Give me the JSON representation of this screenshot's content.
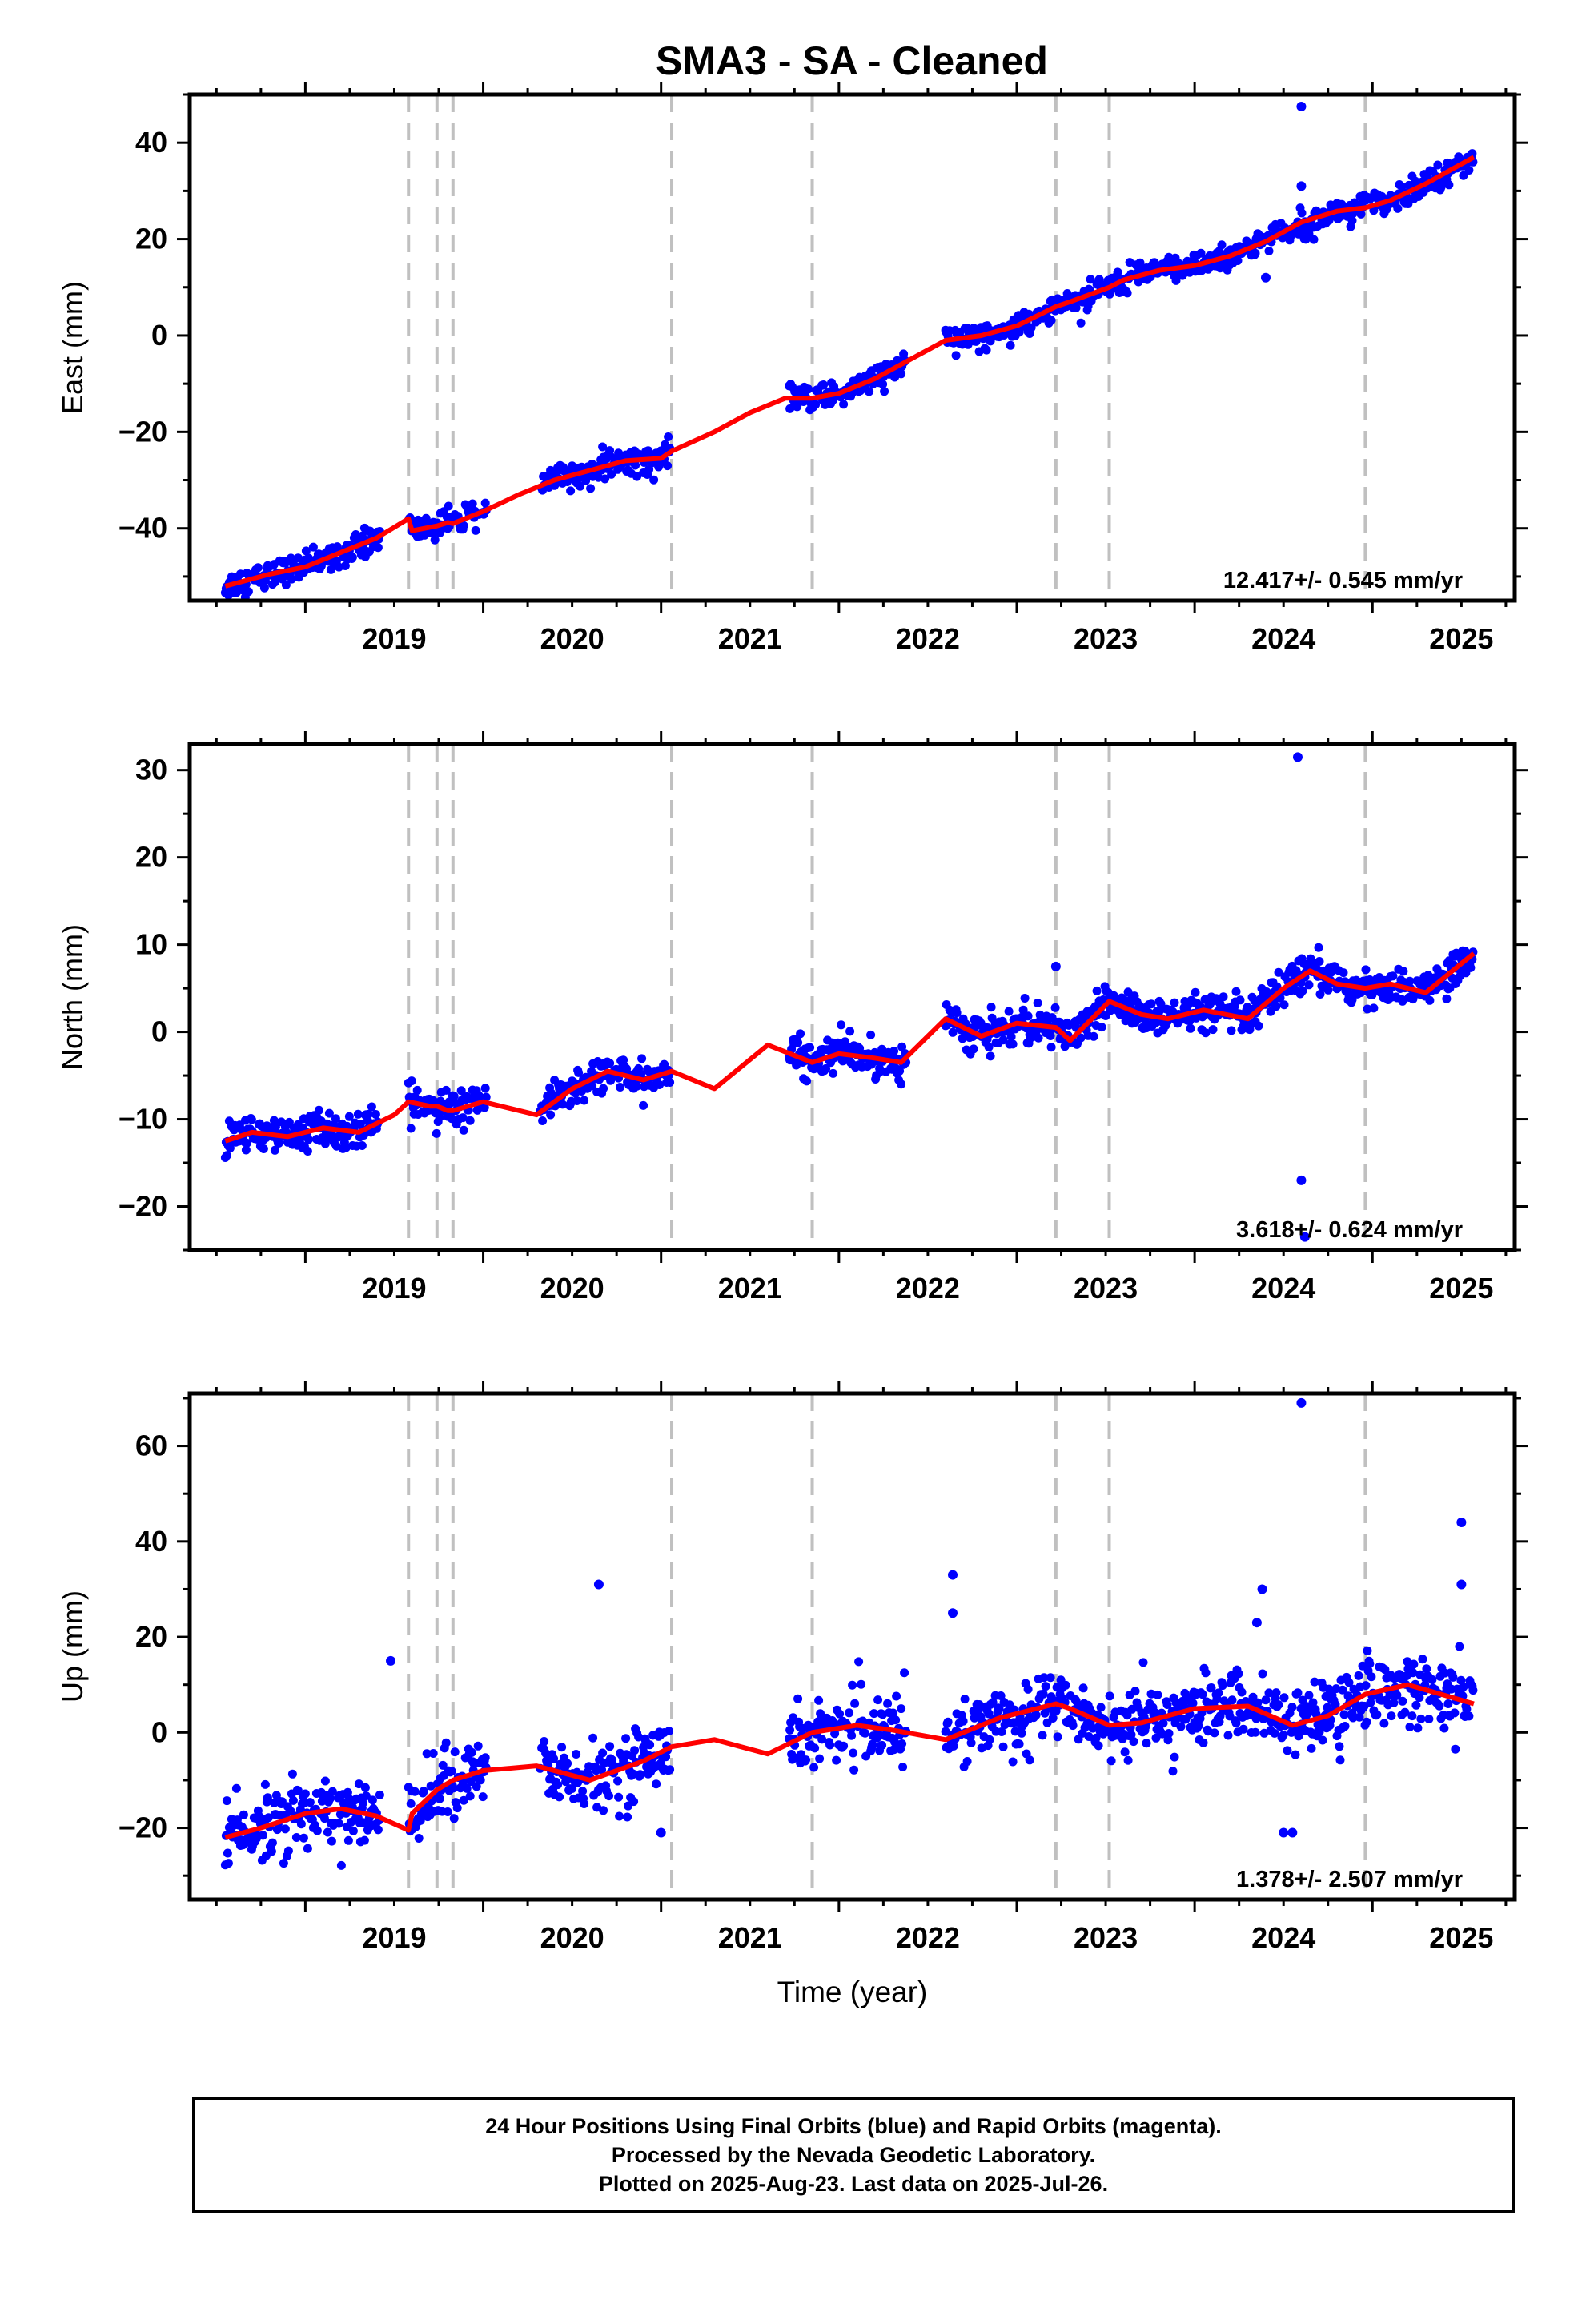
{
  "title": "SMA3  - SA - Cleaned",
  "footer": {
    "line1": "24 Hour Positions Using Final Orbits (blue) and Rapid Orbits (magenta).",
    "line2": "Processed by the Nevada Geodetic Laboratory.",
    "line3": "Plotted on 2025-Aug-23. Last data on 2025-Jul-26."
  },
  "colors": {
    "final_orbits": "#0000ff",
    "fit": "#ff0000",
    "event_lines": "#c0c0c0",
    "frame": "#000000"
  },
  "chart_data": [
    {
      "type": "scatter",
      "name": "east",
      "ylabel": "East (mm)",
      "xlabel": "",
      "xlim": [
        2018.35,
        2025.8
      ],
      "ylim": [
        -55,
        50
      ],
      "yticks": [
        -40,
        -20,
        0,
        20,
        40
      ],
      "xticks": [
        2019,
        2020,
        2021,
        2022,
        2023,
        2024,
        2025
      ],
      "rate_label": "12.417+/- 0.545 mm/yr",
      "event_lines": [
        2019.58,
        2019.74,
        2019.83,
        2021.06,
        2021.85,
        2023.22,
        2023.52,
        2024.96
      ],
      "data_segments": [
        [
          2018.55,
          2019.42
        ],
        [
          2019.58,
          2020.02
        ],
        [
          2020.32,
          2021.05
        ],
        [
          2021.72,
          2022.38
        ],
        [
          2022.6,
          2025.57
        ]
      ],
      "fit": {
        "x": [
          2018.55,
          2018.8,
          2019.0,
          2019.2,
          2019.4,
          2019.58,
          2019.6,
          2019.74,
          2019.8,
          2019.83,
          2020.0,
          2020.2,
          2020.4,
          2020.6,
          2020.8,
          2021.0,
          2021.06,
          2021.3,
          2021.5,
          2021.7,
          2021.85,
          2022.0,
          2022.2,
          2022.4,
          2022.6,
          2022.8,
          2023.0,
          2023.22,
          2023.3,
          2023.52,
          2023.6,
          2023.8,
          2024.0,
          2024.2,
          2024.4,
          2024.6,
          2024.8,
          2024.96,
          2025.1,
          2025.3,
          2025.57
        ],
        "y": [
          -52,
          -49.5,
          -48,
          -45,
          -42,
          -38,
          -40.5,
          -39.5,
          -38.8,
          -39,
          -36.5,
          -33,
          -30,
          -28,
          -26,
          -25.5,
          -24,
          -20,
          -16,
          -13,
          -13,
          -12,
          -9,
          -5,
          -1,
          0,
          2,
          6,
          7,
          10,
          11.5,
          13.5,
          14.5,
          16.5,
          19.5,
          23.5,
          25.8,
          26.5,
          28,
          31.5,
          37
        ]
      },
      "outliers": [
        {
          "x": 2024.6,
          "y": 47.5
        },
        {
          "x": 2024.4,
          "y": 12
        },
        {
          "x": 2024.6,
          "y": 31
        }
      ],
      "noise": 1.3
    },
    {
      "type": "scatter",
      "name": "north",
      "ylabel": "North (mm)",
      "xlabel": "",
      "xlim": [
        2018.35,
        2025.8
      ],
      "ylim": [
        -25,
        33
      ],
      "yticks": [
        -20,
        -10,
        0,
        10,
        20,
        30
      ],
      "xticks": [
        2019,
        2020,
        2021,
        2022,
        2023,
        2024,
        2025
      ],
      "rate_label": "3.618+/- 0.624 mm/yr",
      "event_lines": [
        2019.58,
        2019.74,
        2019.83,
        2021.06,
        2021.85,
        2023.22,
        2023.52,
        2024.96
      ],
      "data_segments": [
        [
          2018.55,
          2019.42
        ],
        [
          2019.58,
          2020.02
        ],
        [
          2020.32,
          2021.05
        ],
        [
          2021.72,
          2022.38
        ],
        [
          2022.6,
          2025.57
        ]
      ],
      "fit": {
        "x": [
          2018.55,
          2018.7,
          2018.9,
          2019.1,
          2019.3,
          2019.5,
          2019.58,
          2019.7,
          2019.74,
          2019.8,
          2019.83,
          2020.0,
          2020.3,
          2020.5,
          2020.7,
          2020.9,
          2021.06,
          2021.3,
          2021.6,
          2021.85,
          2022.0,
          2022.2,
          2022.35,
          2022.6,
          2022.8,
          2023.0,
          2023.22,
          2023.3,
          2023.52,
          2023.7,
          2023.85,
          2024.05,
          2024.3,
          2024.5,
          2024.65,
          2024.8,
          2024.96,
          2025.1,
          2025.3,
          2025.57
        ],
        "y": [
          -12.5,
          -11.5,
          -12,
          -11,
          -11.5,
          -9.5,
          -8,
          -8.5,
          -8.5,
          -9,
          -9,
          -8,
          -9.5,
          -6.5,
          -4.5,
          -5.5,
          -4.5,
          -6.5,
          -1.5,
          -3.5,
          -2.5,
          -3,
          -3.5,
          1.5,
          -0.5,
          1,
          0.5,
          -1,
          3.5,
          2,
          1.5,
          2.5,
          1.5,
          5,
          7,
          5.5,
          5,
          5.5,
          4.5,
          9
        ]
      },
      "outliers": [
        {
          "x": 2024.58,
          "y": 31.5
        },
        {
          "x": 2024.6,
          "y": -17
        },
        {
          "x": 2024.62,
          "y": -23.5
        },
        {
          "x": 2023.22,
          "y": 7.5
        }
      ],
      "noise": 1.0
    },
    {
      "type": "scatter",
      "name": "up",
      "ylabel": "Up (mm)",
      "xlabel": "Time (year)",
      "xlim": [
        2018.35,
        2025.8
      ],
      "ylim": [
        -35,
        71
      ],
      "yticks": [
        -20,
        0,
        20,
        40,
        60
      ],
      "xticks": [
        2019,
        2020,
        2021,
        2022,
        2023,
        2024,
        2025
      ],
      "rate_label": "1.378+/- 2.507 mm/yr",
      "event_lines": [
        2019.58,
        2019.74,
        2019.83,
        2021.06,
        2021.85,
        2023.22,
        2023.52,
        2024.96
      ],
      "data_segments": [
        [
          2018.55,
          2019.42
        ],
        [
          2019.58,
          2020.02
        ],
        [
          2020.32,
          2021.05
        ],
        [
          2021.72,
          2022.38
        ],
        [
          2022.6,
          2025.57
        ]
      ],
      "fit": {
        "x": [
          2018.55,
          2018.75,
          2019.0,
          2019.2,
          2019.4,
          2019.58,
          2019.6,
          2019.74,
          2019.83,
          2020.0,
          2020.3,
          2020.6,
          2020.9,
          2021.06,
          2021.3,
          2021.6,
          2021.85,
          2022.1,
          2022.3,
          2022.6,
          2022.9,
          2023.22,
          2023.3,
          2023.52,
          2023.7,
          2024.0,
          2024.3,
          2024.55,
          2024.75,
          2024.96,
          2025.2,
          2025.57
        ],
        "y": [
          -22,
          -20,
          -17,
          -16,
          -17.5,
          -20.5,
          -17,
          -12,
          -10,
          -8,
          -7,
          -10,
          -6,
          -3,
          -1.5,
          -4.5,
          0,
          1.5,
          0.5,
          -1.5,
          3,
          6,
          5,
          1.5,
          2,
          5,
          5.5,
          1.5,
          3.5,
          8,
          10,
          6
        ]
      },
      "outliers": [
        {
          "x": 2024.6,
          "y": 69
        },
        {
          "x": 2025.5,
          "y": 44
        },
        {
          "x": 2025.5,
          "y": 31
        },
        {
          "x": 2020.65,
          "y": 31
        },
        {
          "x": 2022.64,
          "y": 33
        },
        {
          "x": 2022.64,
          "y": 25
        },
        {
          "x": 2024.38,
          "y": 30
        },
        {
          "x": 2024.35,
          "y": 23
        },
        {
          "x": 2019.48,
          "y": 15
        },
        {
          "x": 2024.5,
          "y": -21
        },
        {
          "x": 2024.55,
          "y": -21
        },
        {
          "x": 2021.0,
          "y": -21
        }
      ],
      "noise": 3.5
    }
  ]
}
